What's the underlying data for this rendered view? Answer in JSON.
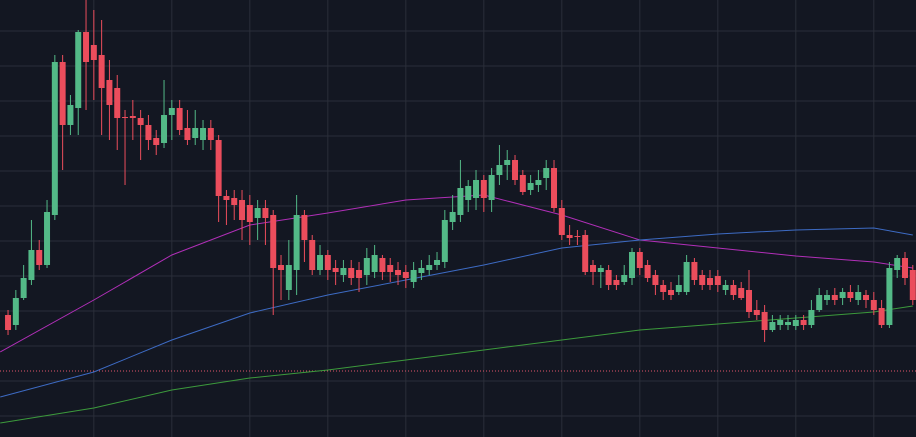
{
  "chart_data": {
    "type": "candlestick",
    "background": "#131722",
    "grid": true,
    "grid_color": "#2a2e39",
    "up_color": "#53b987",
    "down_color": "#eb4d5c",
    "xlim": [
      -1.03,
      116.41
    ],
    "ylim": [
      0,
      437
    ],
    "xticks": [
      11,
      21,
      31,
      41,
      51,
      61,
      71,
      81,
      91,
      101,
      111
    ],
    "yticks": [
      21,
      56,
      91,
      126,
      161,
      196,
      231,
      266,
      301,
      336,
      371,
      406
    ],
    "x": [
      0,
      1,
      2,
      3,
      4,
      5,
      6,
      7,
      8,
      9,
      10,
      11,
      12,
      13,
      14,
      15,
      16,
      17,
      18,
      19,
      20,
      21,
      22,
      23,
      24,
      25,
      26,
      27,
      28,
      29,
      30,
      31,
      32,
      33,
      34,
      35,
      36,
      37,
      38,
      39,
      40,
      41,
      42,
      43,
      44,
      45,
      46,
      47,
      48,
      49,
      50,
      51,
      52,
      53,
      54,
      55,
      56,
      57,
      58,
      59,
      60,
      61,
      62,
      63,
      64,
      65,
      66,
      67,
      68,
      69,
      70,
      71,
      72,
      73,
      74,
      75,
      76,
      77,
      78,
      79,
      80,
      81,
      82,
      83,
      84,
      85,
      86,
      87,
      88,
      89,
      90,
      91,
      92,
      93,
      94,
      95,
      96,
      97,
      98,
      99,
      100,
      101,
      102,
      103,
      104,
      105,
      106,
      107,
      108,
      109,
      110,
      111,
      112,
      113,
      114,
      115,
      116
    ],
    "open": [
      122,
      112,
      139,
      157,
      187,
      172,
      222,
      375,
      312,
      329,
      405,
      392,
      382,
      357,
      349,
      320,
      321,
      319,
      312,
      299,
      294,
      322,
      329,
      309,
      299,
      297,
      309,
      297,
      241,
      239,
      237,
      232,
      219,
      229,
      222,
      172,
      147,
      167,
      222,
      197,
      167,
      182,
      169,
      162,
      169,
      167,
      162,
      165,
      179,
      172,
      167,
      165,
      155,
      164,
      167,
      172,
      175,
      215,
      222,
      237,
      239,
      257,
      237,
      262,
      272,
      277,
      262,
      247,
      252,
      259,
      269,
      229,
      202,
      201,
      202,
      172,
      165,
      167,
      157,
      155,
      159,
      185,
      172,
      162,
      152,
      147,
      145,
      145,
      175,
      162,
      159,
      161,
      147,
      152,
      149,
      147,
      127,
      125,
      107,
      112,
      112,
      111,
      117,
      112,
      127,
      137,
      142,
      139,
      145,
      137,
      142,
      137,
      129,
      112,
      167,
      179,
      167
    ],
    "high": [
      127,
      147,
      172,
      217,
      197,
      237,
      382,
      382,
      342,
      407,
      437,
      427,
      417,
      377,
      362,
      327,
      337,
      327,
      322,
      307,
      357,
      337,
      337,
      327,
      327,
      317,
      317,
      302,
      247,
      247,
      247,
      242,
      237,
      237,
      227,
      182,
      197,
      242,
      227,
      202,
      192,
      187,
      177,
      177,
      177,
      175,
      189,
      192,
      182,
      179,
      175,
      172,
      175,
      177,
      182,
      185,
      227,
      242,
      277,
      257,
      267,
      262,
      269,
      292,
      287,
      282,
      267,
      262,
      267,
      277,
      277,
      237,
      212,
      207,
      207,
      177,
      172,
      172,
      162,
      172,
      189,
      189,
      177,
      167,
      157,
      155,
      162,
      182,
      179,
      167,
      167,
      167,
      157,
      157,
      155,
      167,
      137,
      132,
      122,
      122,
      122,
      122,
      122,
      137,
      149,
      147,
      149,
      149,
      152,
      152,
      147,
      145,
      137,
      175,
      182,
      185,
      172
    ],
    "low": [
      102,
      107,
      137,
      152,
      167,
      169,
      217,
      267,
      302,
      302,
      327,
      337,
      302,
      297,
      287,
      252,
      297,
      277,
      287,
      282,
      289,
      297,
      302,
      292,
      292,
      287,
      287,
      215,
      212,
      217,
      197,
      192,
      197,
      192,
      122,
      137,
      137,
      142,
      175,
      162,
      162,
      157,
      152,
      155,
      152,
      145,
      152,
      159,
      157,
      155,
      152,
      149,
      149,
      157,
      162,
      167,
      169,
      207,
      215,
      225,
      227,
      225,
      225,
      252,
      257,
      252,
      242,
      242,
      245,
      247,
      225,
      197,
      192,
      192,
      162,
      152,
      149,
      147,
      147,
      152,
      152,
      162,
      155,
      142,
      137,
      137,
      142,
      142,
      152,
      147,
      147,
      145,
      142,
      137,
      137,
      119,
      117,
      95,
      105,
      107,
      107,
      107,
      107,
      109,
      125,
      132,
      132,
      132,
      135,
      132,
      129,
      122,
      109,
      109,
      159,
      152,
      132
    ],
    "close": [
      107,
      139,
      159,
      187,
      172,
      225,
      375,
      312,
      332,
      405,
      375,
      377,
      349,
      332,
      319,
      319,
      319,
      312,
      297,
      292,
      322,
      329,
      307,
      297,
      309,
      309,
      297,
      241,
      237,
      232,
      217,
      215,
      229,
      219,
      169,
      167,
      172,
      222,
      197,
      167,
      182,
      167,
      165,
      169,
      159,
      159,
      179,
      182,
      165,
      165,
      162,
      159,
      167,
      169,
      172,
      177,
      217,
      225,
      249,
      251,
      257,
      239,
      262,
      272,
      277,
      257,
      245,
      254,
      257,
      269,
      229,
      202,
      199,
      200,
      165,
      165,
      169,
      152,
      152,
      162,
      185,
      169,
      159,
      152,
      145,
      142,
      152,
      175,
      157,
      152,
      152,
      152,
      152,
      142,
      139,
      125,
      122,
      107,
      115,
      117,
      115,
      117,
      112,
      127,
      142,
      142,
      137,
      145,
      139,
      145,
      137,
      127,
      112,
      169,
      179,
      159,
      137
    ],
    "lines": [
      {
        "color": "#b12fb8",
        "x": [
          -1,
          11,
          21,
          31,
          41,
          51,
          61,
          66,
          71,
          81,
          91,
          101,
          111,
          116
        ],
        "values": [
          85,
          137,
          182,
          212,
          224,
          237,
          242,
          232,
          222,
          197,
          189,
          181,
          175,
          169
        ]
      },
      {
        "color": "#3d6bc4",
        "x": [
          -1,
          11,
          21,
          31,
          41,
          51,
          61,
          71,
          81,
          91,
          101,
          111,
          116
        ],
        "values": [
          40,
          65,
          97,
          124,
          142,
          157,
          172,
          189,
          197,
          203,
          207,
          209,
          202
        ]
      },
      {
        "color": "#3c9a3c",
        "x": [
          -1,
          11,
          21,
          31,
          41,
          51,
          61,
          71,
          81,
          91,
          101,
          111,
          116
        ],
        "values": [
          14,
          29,
          47,
          59,
          67,
          77,
          87,
          97,
          107,
          113,
          119,
          125,
          131
        ]
      }
    ],
    "hline": {
      "value": 66,
      "color": "#e0566a"
    }
  }
}
